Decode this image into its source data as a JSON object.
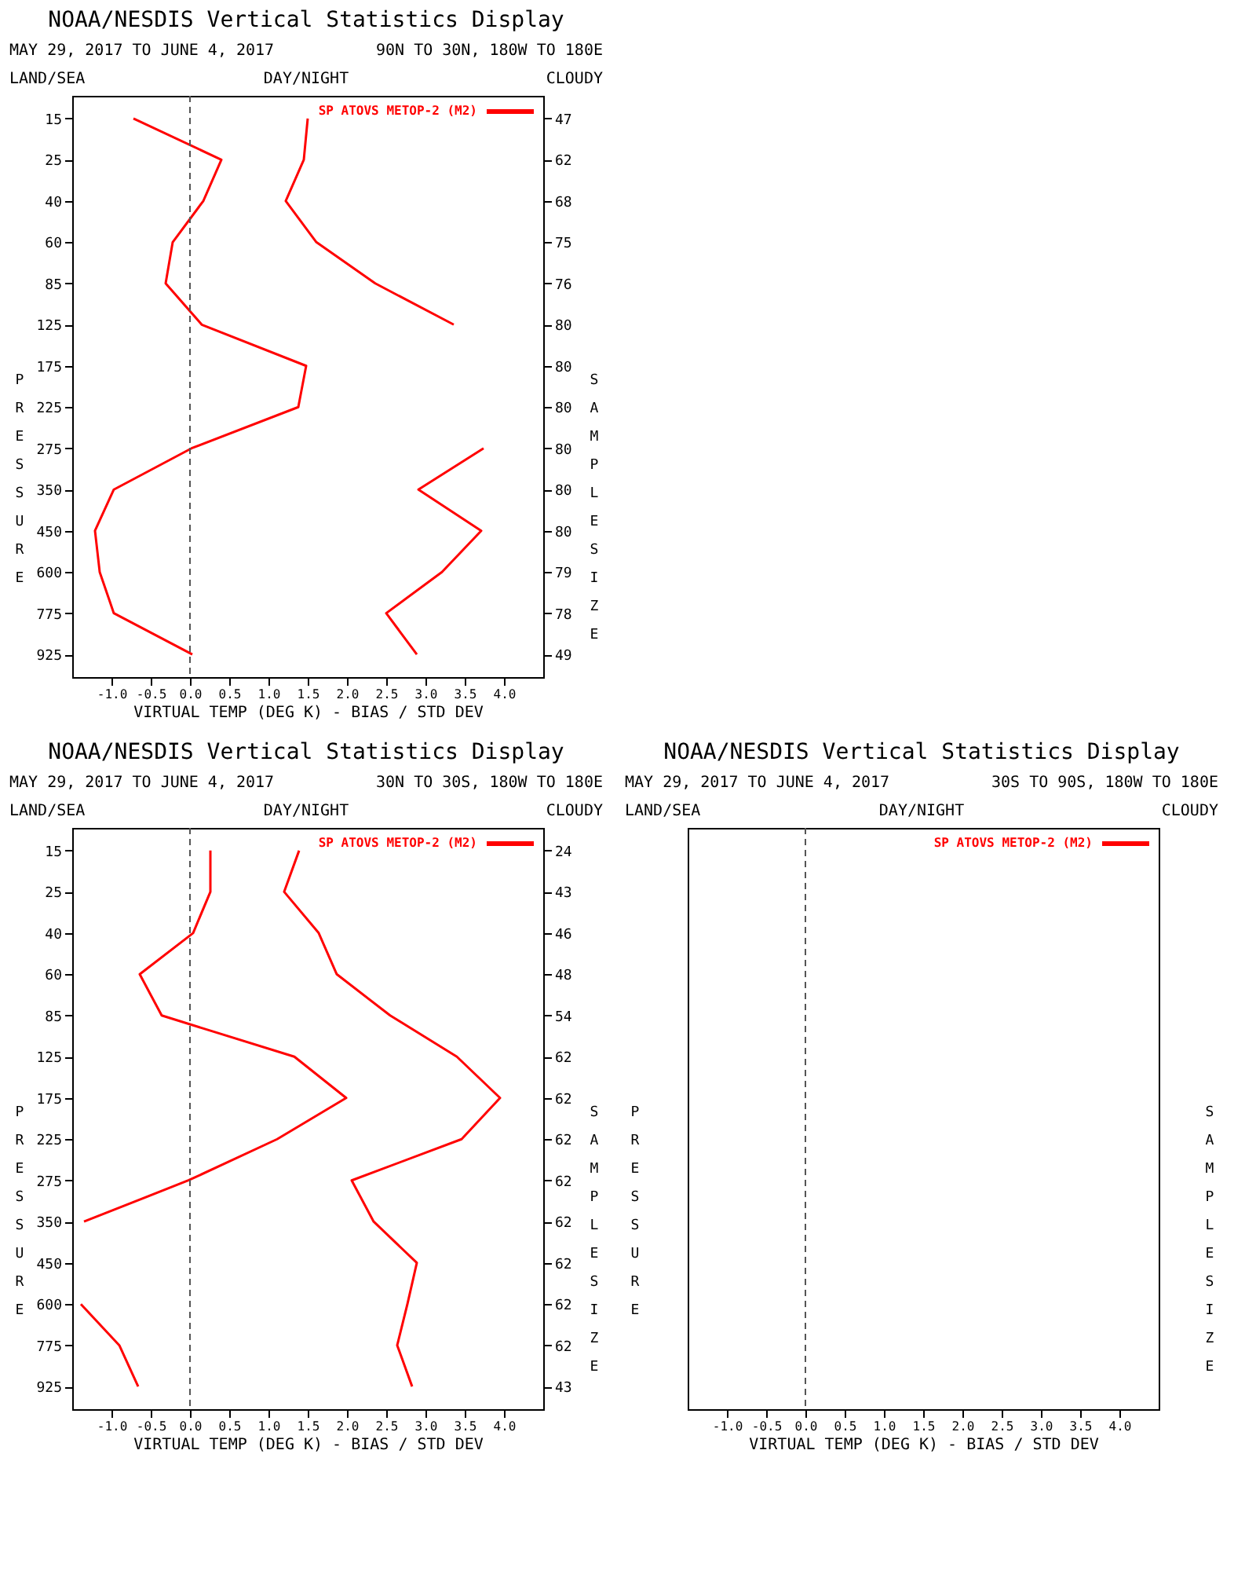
{
  "chart_data": [
    {
      "type": "line",
      "orientation": "horizontal",
      "title": "NOAA/NESDIS Vertical Statistics Display",
      "subtitle": "MAY 29, 2017 TO JUNE 4, 2017",
      "annotations": [
        "90N TO 30N, 180W TO 180E",
        "LAND/SEA",
        "DAY/NIGHT",
        "CLOUDY"
      ],
      "xlabel": "VIRTUAL TEMP (DEG K) - BIAS / STD DEV",
      "ylabel": "PRESSURE",
      "y2label": "SAMPLE SIZE",
      "categories": [
        "15",
        "25",
        "40",
        "60",
        "85",
        "125",
        "175",
        "225",
        "275",
        "350",
        "450",
        "600",
        "775",
        "925"
      ],
      "y2_categories": [
        "47",
        "62",
        "68",
        "75",
        "76",
        "80",
        "80",
        "80",
        "80",
        "80",
        "80",
        "79",
        "78",
        "49"
      ],
      "xlim": [
        -1.5,
        4.5
      ],
      "xticks": [
        {
          "value": -1,
          "label": "-1.0"
        },
        {
          "value": -0.5,
          "label": "-0.5"
        },
        {
          "value": 0,
          "label": "0.0"
        },
        {
          "value": 0.5,
          "label": "0.5"
        },
        {
          "value": 1,
          "label": "1.0"
        },
        {
          "value": 1.5,
          "label": "1.5"
        },
        {
          "value": 2,
          "label": "2.0"
        },
        {
          "value": 2.5,
          "label": "2.5"
        },
        {
          "value": 3,
          "label": "3.0"
        },
        {
          "value": 3.5,
          "label": "3.5"
        },
        {
          "value": 4,
          "label": "4.0"
        }
      ],
      "legend": "top right",
      "grid": false,
      "ref_lines": [
        {
          "axis": "x",
          "value": 0,
          "color": "#555555",
          "line_style": "dashed"
        }
      ],
      "series": [
        {
          "name": "SP ATOVS METOP-2 (M2)",
          "color": "#ff0000",
          "values": [
            -0.72,
            0.4,
            0.17,
            -0.22,
            -0.31,
            0.15,
            1.48,
            1.38,
            0.02,
            -0.97,
            -1.21,
            -1.15,
            -0.97,
            0.03
          ]
        },
        {
          "color": "#ff0000",
          "values": [
            1.5,
            1.45,
            1.22,
            1.61,
            2.36,
            3.36,
            null,
            null,
            3.74,
            2.91,
            3.71,
            3.21,
            2.5,
            2.89
          ]
        }
      ]
    },
    {
      "type": "line",
      "orientation": "horizontal",
      "title": "NOAA/NESDIS Vertical Statistics Display",
      "subtitle": "MAY 29, 2017 TO JUNE 4, 2017",
      "annotations": [
        "30N TO 30S, 180W TO 180E",
        "LAND/SEA",
        "DAY/NIGHT",
        "CLOUDY"
      ],
      "xlabel": "VIRTUAL TEMP (DEG K) - BIAS / STD DEV",
      "ylabel": "PRESSURE",
      "y2label": "SAMPLE SIZE",
      "categories": [
        "15",
        "25",
        "40",
        "60",
        "85",
        "125",
        "175",
        "225",
        "275",
        "350",
        "450",
        "600",
        "775",
        "925"
      ],
      "y2_categories": [
        "24",
        "43",
        "46",
        "48",
        "54",
        "62",
        "62",
        "62",
        "62",
        "62",
        "62",
        "62",
        "62",
        "43"
      ],
      "xlim": [
        -1.5,
        4.5
      ],
      "xticks": [
        {
          "value": -1,
          "label": "-1.0"
        },
        {
          "value": -0.5,
          "label": "-0.5"
        },
        {
          "value": 0,
          "label": "0.0"
        },
        {
          "value": 0.5,
          "label": "0.5"
        },
        {
          "value": 1,
          "label": "1.0"
        },
        {
          "value": 1.5,
          "label": "1.5"
        },
        {
          "value": 2,
          "label": "2.0"
        },
        {
          "value": 2.5,
          "label": "2.5"
        },
        {
          "value": 3,
          "label": "3.0"
        },
        {
          "value": 3.5,
          "label": "3.5"
        },
        {
          "value": 4,
          "label": "4.0"
        }
      ],
      "legend": "top right",
      "grid": false,
      "ref_lines": [
        {
          "axis": "x",
          "value": 0,
          "color": "#555555",
          "line_style": "dashed"
        }
      ],
      "series": [
        {
          "name": "SP ATOVS METOP-2 (M2)",
          "color": "#ff0000",
          "values": [
            0.26,
            0.26,
            0.04,
            -0.64,
            -0.36,
            1.33,
            1.99,
            1.11,
            -0.02,
            -1.35,
            null,
            -1.39,
            -0.9,
            -0.66
          ]
        },
        {
          "color": "#ff0000",
          "values": [
            1.39,
            1.2,
            1.64,
            1.87,
            2.55,
            3.4,
            3.95,
            3.46,
            2.06,
            2.34,
            2.89,
            2.77,
            2.64,
            2.83
          ]
        }
      ]
    },
    {
      "type": "line",
      "orientation": "horizontal",
      "title": "NOAA/NESDIS Vertical Statistics Display",
      "subtitle": "MAY 29, 2017 TO JUNE 4, 2017",
      "annotations": [
        "30S TO 90S, 180W TO 180E",
        "LAND/SEA",
        "DAY/NIGHT",
        "CLOUDY"
      ],
      "xlabel": "VIRTUAL TEMP (DEG K) - BIAS / STD DEV",
      "ylabel": "PRESSURE",
      "y2label": "SAMPLE SIZE",
      "xlim": [
        -1.5,
        4.5
      ],
      "xticks": [
        {
          "value": -1,
          "label": "-1.0"
        },
        {
          "value": -0.5,
          "label": "-0.5"
        },
        {
          "value": 0,
          "label": "0.0"
        },
        {
          "value": 0.5,
          "label": "0.5"
        },
        {
          "value": 1,
          "label": "1.0"
        },
        {
          "value": 1.5,
          "label": "1.5"
        },
        {
          "value": 2,
          "label": "2.0"
        },
        {
          "value": 2.5,
          "label": "2.5"
        },
        {
          "value": 3,
          "label": "3.0"
        },
        {
          "value": 3.5,
          "label": "3.5"
        },
        {
          "value": 4,
          "label": "4.0"
        }
      ],
      "legend": "top right",
      "grid": false,
      "ref_lines": [
        {
          "axis": "x",
          "value": 0,
          "color": "#555555",
          "line_style": "dashed"
        }
      ],
      "series": [
        {
          "name": "SP ATOVS METOP-2 (M2)",
          "color": "#ff0000"
        },
        {
          "color": "#ff0000"
        }
      ]
    }
  ]
}
